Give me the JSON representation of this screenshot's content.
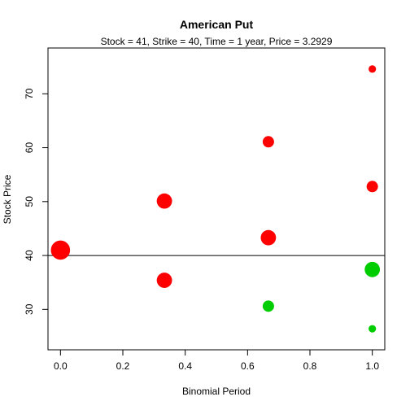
{
  "chart_data": {
    "type": "scatter",
    "title": "American Put",
    "subtitle": "Stock = 41, Strike = 40, Time = 1 year, Price = 3.2929",
    "xlabel": "Binomial Period",
    "ylabel": "Stock Price",
    "xlim": [
      -0.04,
      1.04
    ],
    "ylim": [
      22.5,
      78.5
    ],
    "xticks": [
      0.0,
      0.2,
      0.4,
      0.6,
      0.8,
      1.0
    ],
    "xtick_labels": [
      "0.0",
      "0.2",
      "0.4",
      "0.6",
      "0.8",
      "1.0"
    ],
    "yticks": [
      30,
      40,
      50,
      60,
      70
    ],
    "ytick_labels": [
      "30",
      "40",
      "50",
      "60",
      "70"
    ],
    "hline": 40,
    "colors": {
      "exercise": "#ff0000",
      "hold": "#00cd00"
    },
    "points": [
      {
        "x": 0.0,
        "y": 41.0,
        "status": "exercise",
        "size": 4
      },
      {
        "x": 0.3333,
        "y": 50.1,
        "status": "exercise",
        "size": 3
      },
      {
        "x": 0.3333,
        "y": 35.4,
        "status": "exercise",
        "size": 3
      },
      {
        "x": 0.6667,
        "y": 61.1,
        "status": "exercise",
        "size": 2
      },
      {
        "x": 0.6667,
        "y": 43.3,
        "status": "exercise",
        "size": 3
      },
      {
        "x": 0.6667,
        "y": 30.6,
        "status": "hold",
        "size": 2
      },
      {
        "x": 1.0,
        "y": 74.6,
        "status": "exercise",
        "size": 1
      },
      {
        "x": 1.0,
        "y": 52.8,
        "status": "exercise",
        "size": 2
      },
      {
        "x": 1.0,
        "y": 37.4,
        "status": "hold",
        "size": 3
      },
      {
        "x": 1.0,
        "y": 26.4,
        "status": "hold",
        "size": 1
      }
    ]
  }
}
